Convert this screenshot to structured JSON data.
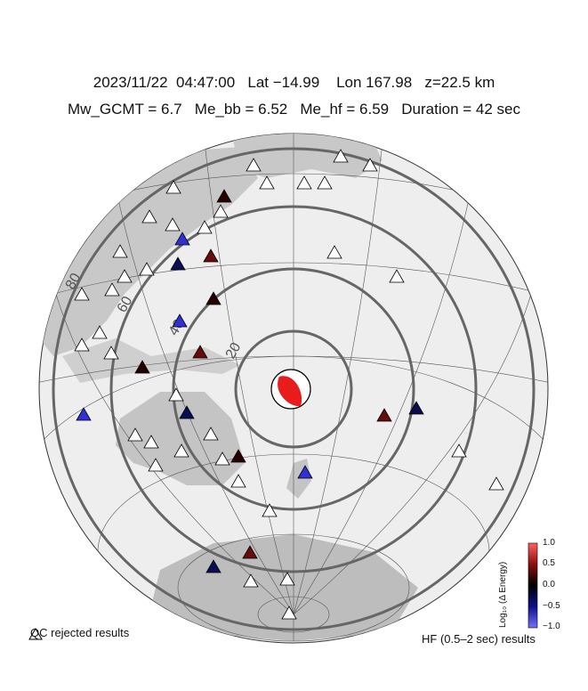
{
  "header": {
    "line1": "2023/11/22  04:47:00   Lat −14.99    Lon 167.98   z=22.5 km",
    "line2": "Mw_GCMT = 6.7   Me_bb = 6.52   Me_hf = 6.59   Duration = 42 sec"
  },
  "map": {
    "ring_labels": [
      "20",
      "40",
      "60",
      "80"
    ],
    "colors": {
      "land": "#c8c8c8",
      "ocean": "#eeeeee",
      "ring": "#666666",
      "beachball_fill": "#e81c1c",
      "qc_rejected": "#ffffff"
    }
  },
  "stations": [
    {
      "value": "white"
    },
    {
      "value": "white"
    },
    {
      "value": "white"
    },
    {
      "value": "white"
    },
    {
      "value": "white"
    },
    {
      "value": "white"
    },
    {
      "value": "white"
    },
    {
      "value": "white"
    },
    {
      "value": 0.0
    },
    {
      "value": -0.8
    },
    {
      "value": 0.3
    },
    {
      "value": -0.2
    }
  ],
  "legend": {
    "qc_label": "QC rejected results",
    "hf_label": "HF (0.5–2 sec) results",
    "colorbar_title": "Log₁₀ (Δ Energy)",
    "colorbar_ticks": [
      "1.0",
      "0.5",
      "0.0",
      "−0.5",
      "−1.0"
    ]
  }
}
